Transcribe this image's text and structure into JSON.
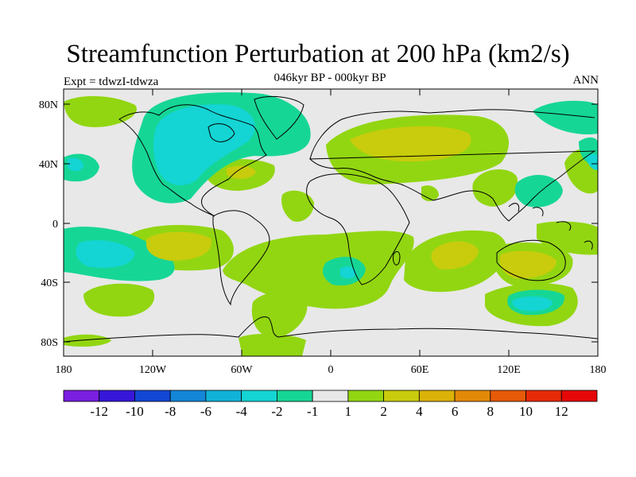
{
  "title": "Streamfunction Perturbation at 200 hPa (km2/s)",
  "subtitle": "046kyr BP - 000kyr BP",
  "left_label": "Expt = tdwzI-tdwza",
  "right_label": "ANN",
  "lat_ticks": [
    "80N",
    "40N",
    "0",
    "40S",
    "80S"
  ],
  "lon_ticks": [
    "180",
    "120W",
    "60W",
    "0",
    "60E",
    "120E",
    "180"
  ],
  "colorbar": {
    "labels": [
      "-12",
      "-10",
      "-8",
      "-6",
      "-4",
      "-2",
      "-1",
      "1",
      "2",
      "4",
      "6",
      "8",
      "10",
      "12"
    ],
    "colors": [
      "#7a1ee0",
      "#3616d8",
      "#1246d4",
      "#1386d8",
      "#11b2d8",
      "#14d4d4",
      "#16d696",
      "#e8e8e8",
      "#92d612",
      "#c8cc0c",
      "#dab208",
      "#e28a08",
      "#e65a08",
      "#e62a08",
      "#e60808"
    ]
  }
}
